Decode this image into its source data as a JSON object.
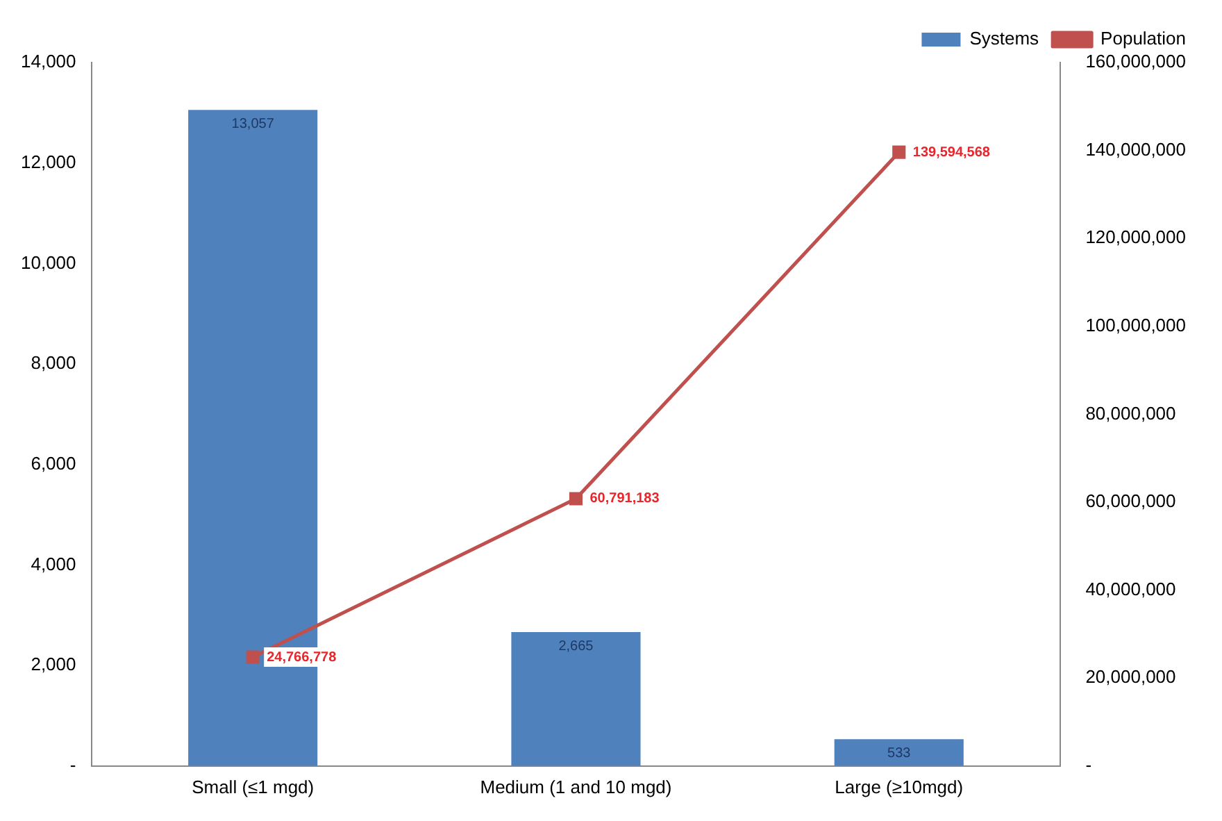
{
  "chart_data": {
    "type": "bar",
    "categories": [
      "Small (≤1 mgd)",
      "Medium (1 and 10 mgd)",
      "Large (≥10mgd)"
    ],
    "series": [
      {
        "name": "Systems",
        "color": "#4f81bd",
        "values": [
          13057,
          2665,
          533
        ],
        "value_labels": [
          "13,057",
          "2,665",
          "533"
        ]
      },
      {
        "name": "Population",
        "type": "line",
        "axis": "y2",
        "color": "#c0504d",
        "values": [
          24766778,
          60791183,
          139594568
        ],
        "value_labels": [
          "24,766,778",
          "60,791,183",
          "139,594,568"
        ]
      }
    ],
    "ylim": [
      0,
      14000
    ],
    "yticks": [
      {
        "value": 0,
        "label": "-"
      },
      {
        "value": 2000,
        "label": "2,000"
      },
      {
        "value": 4000,
        "label": "4,000"
      },
      {
        "value": 6000,
        "label": "6,000"
      },
      {
        "value": 8000,
        "label": "8,000"
      },
      {
        "value": 10000,
        "label": "10,000"
      },
      {
        "value": 12000,
        "label": "12,000"
      },
      {
        "value": 14000,
        "label": "14,000"
      }
    ],
    "y2lim": [
      0,
      160000000
    ],
    "y2ticks": [
      {
        "value": 0,
        "label": "-"
      },
      {
        "value": 20000000,
        "label": "20,000,000"
      },
      {
        "value": 40000000,
        "label": "40,000,000"
      },
      {
        "value": 60000000,
        "label": "60,000,000"
      },
      {
        "value": 80000000,
        "label": "80,000,000"
      },
      {
        "value": 100000000,
        "label": "100,000,000"
      },
      {
        "value": 120000000,
        "label": "120,000,000"
      },
      {
        "value": 140000000,
        "label": "140,000,000"
      },
      {
        "value": 160000000,
        "label": "160,000,000"
      }
    ],
    "legend": "top right",
    "marker": "square",
    "grid": false
  }
}
